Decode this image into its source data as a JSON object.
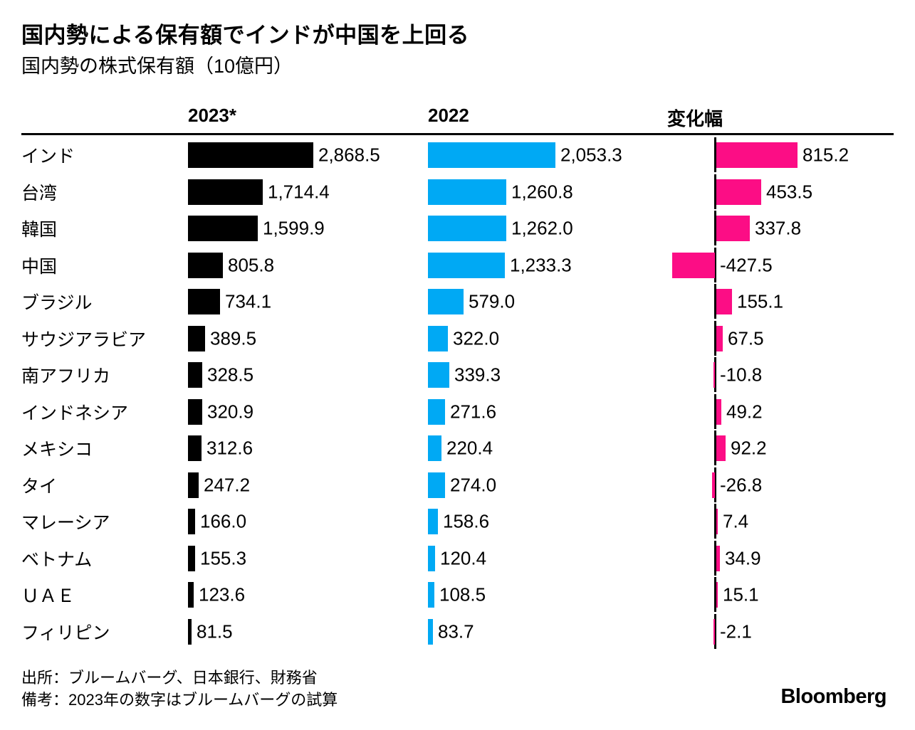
{
  "chart_data": {
    "type": "bar",
    "title": "国内勢による保有額でインドが中国を上回る",
    "subtitle": "国内勢の株式保有額（10億円）",
    "legend_position": "column-headers-top",
    "grid": false,
    "columns": [
      {
        "key": "y2023",
        "label": "2023*",
        "color": "#000000"
      },
      {
        "key": "y2022",
        "label": "2022",
        "color": "#00a9f4"
      },
      {
        "key": "change",
        "label": "変化幅",
        "color": "#fc0d85"
      }
    ],
    "categories": [
      "インド",
      "台湾",
      "韓国",
      "中国",
      "ブラジル",
      "サウジアラビア",
      "南アフリカ",
      "インドネシア",
      "メキシコ",
      "タイ",
      "マレーシア",
      "ベトナム",
      "ＵＡＥ",
      "フィリピン"
    ],
    "series": [
      {
        "name": "2023*",
        "values": [
          2868.5,
          1714.4,
          1599.9,
          805.8,
          734.1,
          389.5,
          328.5,
          320.9,
          312.6,
          247.2,
          166.0,
          155.3,
          123.6,
          81.5
        ]
      },
      {
        "name": "2022",
        "values": [
          2053.3,
          1260.8,
          1262.0,
          1233.3,
          579.0,
          322.0,
          339.3,
          271.6,
          220.4,
          274.0,
          158.6,
          120.4,
          108.5,
          83.7
        ]
      },
      {
        "name": "変化幅",
        "values": [
          815.2,
          453.5,
          337.8,
          -427.5,
          155.1,
          67.5,
          -10.8,
          49.2,
          92.2,
          -26.8,
          7.4,
          34.9,
          15.1,
          -2.1
        ]
      }
    ]
  },
  "footer": {
    "source": "出所：ブルームバーグ、日本銀行、財務省",
    "note": "備考：2023年の数字はブルームバーグの試算",
    "brand": "Bloomberg"
  }
}
